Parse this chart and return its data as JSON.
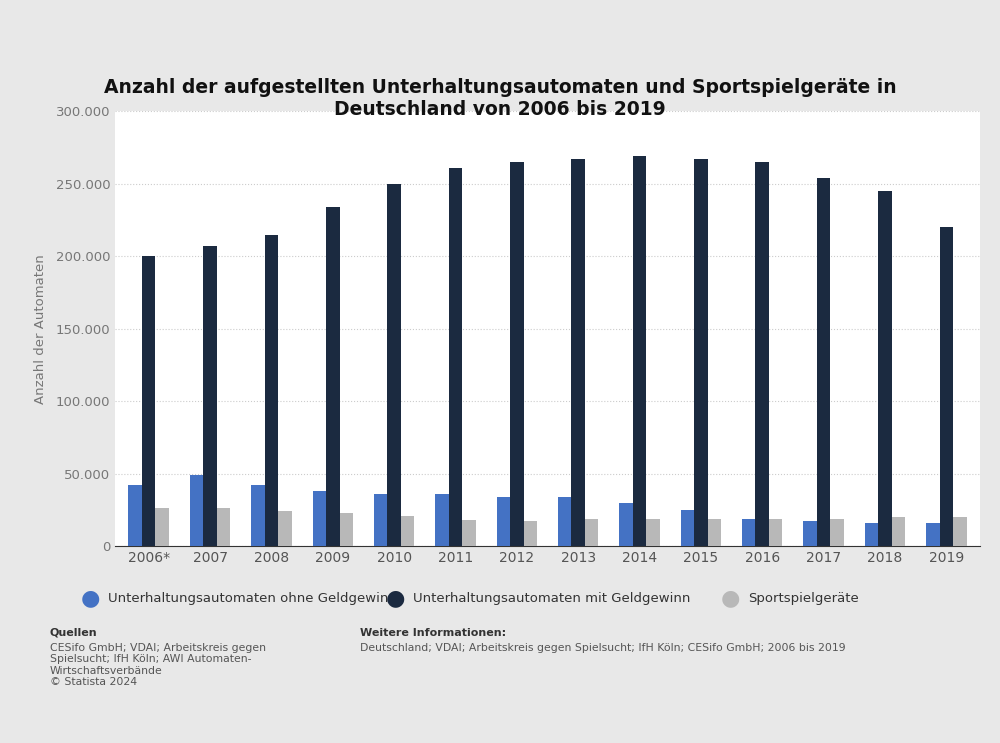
{
  "title_line1": "Anzahl der aufgestellten Unterhaltungsautomaten und Sportspielgeräte in",
  "title_line2": "Deutschland von 2006 bis 2019",
  "years": [
    "2006*",
    "2007",
    "2008",
    "2009",
    "2010",
    "2011",
    "2012",
    "2013",
    "2014",
    "2015",
    "2016",
    "2017",
    "2018",
    "2019"
  ],
  "ohne_geldgewinn": [
    42000,
    49000,
    42000,
    38000,
    36000,
    36000,
    34000,
    34000,
    30000,
    25000,
    19000,
    17000,
    16000,
    16000
  ],
  "mit_geldgewinn": [
    200000,
    207000,
    215000,
    234000,
    250000,
    261000,
    265000,
    267000,
    269000,
    267000,
    265000,
    254000,
    245000,
    220000
  ],
  "sportspielgeraete": [
    26000,
    26000,
    24000,
    23000,
    21000,
    18000,
    17000,
    19000,
    19000,
    19000,
    19000,
    19000,
    20000,
    20000
  ],
  "color_ohne": "#4472c4",
  "color_mit": "#1b2a40",
  "color_sport": "#b8b8b8",
  "ylabel": "Anzahl der Automaten",
  "ylim": [
    0,
    300000
  ],
  "yticks": [
    0,
    50000,
    100000,
    150000,
    200000,
    250000,
    300000
  ],
  "ytick_labels": [
    "0",
    "50.000",
    "100.000",
    "150.000",
    "200.000",
    "250.000",
    "300.000"
  ],
  "legend_labels": [
    "Unterhaltungsautomaten ohne Geldgewinn",
    "Unterhaltungsautomaten mit Geldgewinn",
    "Sportspielgeräte"
  ],
  "bg_color": "#e8e8e8",
  "plot_bg_color": "#ffffff",
  "source_title": "Quellen",
  "source_body": "CESifo GmbH; VDAI; Arbeitskreis gegen\nSpielsucht; IfH Köln; AWI Automaten-\nWirtschaftsverbände\n© Statista 2024",
  "further_title": "Weitere Informationen:",
  "further_body": "Deutschland; VDAI; Arbeitskreis gegen Spielsucht; IfH Köln; CESifo GmbH; 2006 bis 2019"
}
